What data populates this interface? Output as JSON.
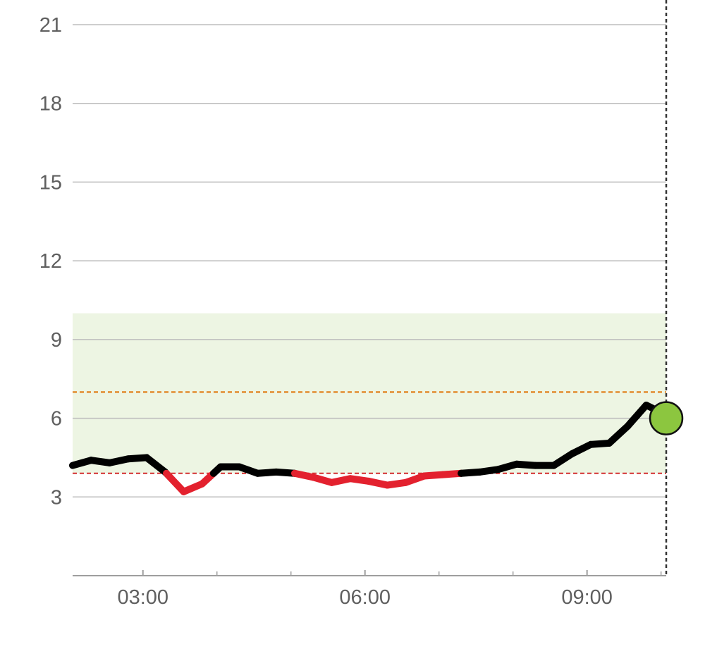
{
  "chart_data": {
    "type": "line",
    "title": "",
    "xlabel": "",
    "ylabel": "",
    "ylim": [
      0,
      22
    ],
    "xlim_hours": [
      2.05,
      10.07
    ],
    "y_ticks": [
      "3",
      "6",
      "9",
      "12",
      "15",
      "18",
      "21"
    ],
    "y_tick_values": [
      3,
      6,
      9,
      12,
      15,
      18,
      21
    ],
    "x_ticks": [
      "03:00",
      "06:00",
      "09:00"
    ],
    "x_tick_hours": [
      3,
      6,
      9
    ],
    "x_minor_tick_hours": [
      4,
      5,
      7,
      8,
      10
    ],
    "target_range": [
      3.9,
      10.0
    ],
    "upper_line": 7.0,
    "lower_line": 3.9,
    "now_hours": 10.07,
    "series": [
      {
        "x": [
          "02:03",
          "02:18",
          "02:33",
          "02:48",
          "03:03",
          "03:18",
          "03:33",
          "03:48",
          "04:03",
          "04:18",
          "04:33",
          "04:48",
          "05:03",
          "05:18",
          "05:33",
          "05:48",
          "06:03",
          "06:18",
          "06:33",
          "06:48",
          "07:03",
          "07:18",
          "07:33",
          "07:48",
          "08:03",
          "08:18",
          "08:33",
          "08:48",
          "09:03",
          "09:18",
          "09:33",
          "09:48",
          "10:03"
        ],
        "values": [
          4.2,
          4.4,
          4.3,
          4.45,
          4.5,
          3.95,
          3.2,
          3.5,
          4.15,
          4.15,
          3.9,
          3.95,
          3.9,
          3.75,
          3.55,
          3.7,
          3.6,
          3.45,
          3.55,
          3.8,
          3.85,
          3.9,
          3.95,
          4.05,
          4.25,
          4.2,
          4.2,
          4.65,
          5.0,
          5.05,
          5.7,
          6.5,
          6.15
        ]
      }
    ],
    "current_value": 6.0,
    "colors": {
      "target_band": "#edf5e3",
      "in_range_line": "#000000",
      "low_line": "#e3212e",
      "upper_dashed": "#e07000",
      "lower_dashed": "#d32f2f",
      "grid": "#bdbdbd",
      "axis": "#9e9e9e",
      "current_dot": "#8cc63f",
      "now_line": "#333333"
    }
  }
}
